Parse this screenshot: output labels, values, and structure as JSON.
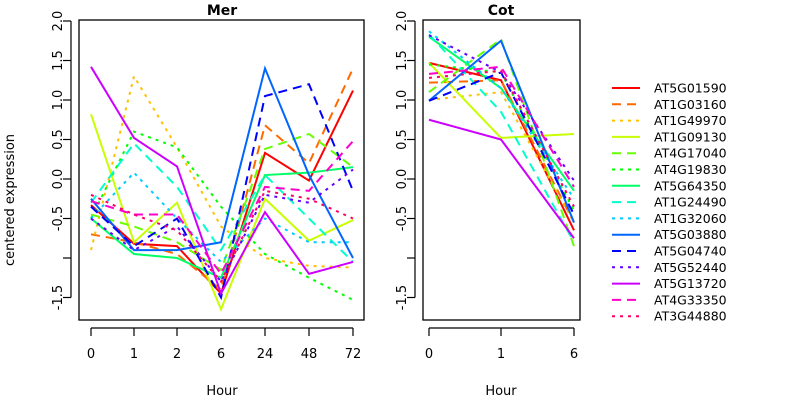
{
  "chart_data": [
    {
      "type": "line",
      "title": "Mer",
      "xlabel": "Hour",
      "ylabel": "centered expression",
      "categories": [
        "0",
        "1",
        "2",
        "6",
        "24",
        "48",
        "72"
      ],
      "ylim": [
        -1.75,
        2.0
      ],
      "yticks": [
        "-1.5",
        "-1.0",
        "-0.5",
        "0.0",
        "0.5",
        "1.0",
        "1.5",
        "2.0"
      ],
      "yticklabels_shown": [
        "-1.5",
        "",
        "-0.5",
        "0.0",
        "0.5",
        "1.0",
        "1.5",
        "2.0"
      ],
      "grid": false,
      "series": [
        {
          "name": "AT5G01590",
          "values": [
            -0.33,
            -0.82,
            -0.85,
            -1.45,
            0.33,
            -0.02,
            1.12
          ]
        },
        {
          "name": "AT1G03160",
          "values": [
            -0.7,
            -0.8,
            -0.95,
            -1.4,
            0.68,
            0.2,
            1.4
          ]
        },
        {
          "name": "AT1G49970",
          "values": [
            -0.9,
            1.3,
            0.4,
            -0.6,
            -1.0,
            -1.1,
            -1.12
          ]
        },
        {
          "name": "AT1G09130",
          "values": [
            0.82,
            -0.8,
            -0.3,
            -1.65,
            -0.25,
            -0.78,
            -0.52
          ]
        },
        {
          "name": "AT4G17040",
          "values": [
            -0.45,
            -0.6,
            -0.8,
            -1.15,
            0.38,
            0.57,
            0.15
          ]
        },
        {
          "name": "AT4G19830",
          "values": [
            -0.5,
            0.6,
            0.4,
            -0.35,
            -0.95,
            -1.25,
            -1.53
          ]
        },
        {
          "name": "AT5G64350",
          "values": [
            -0.5,
            -0.95,
            -1.0,
            -1.25,
            0.05,
            0.08,
            0.15
          ]
        },
        {
          "name": "AT1G24490",
          "values": [
            -0.3,
            0.45,
            -0.1,
            -0.9,
            0.05,
            -0.5,
            -1.05
          ]
        },
        {
          "name": "AT1G32060",
          "values": [
            -0.5,
            0.08,
            -0.5,
            -1.05,
            -0.5,
            -0.8,
            -0.8
          ]
        },
        {
          "name": "AT5G03880",
          "values": [
            -0.25,
            -0.9,
            -0.9,
            -0.8,
            1.4,
            0.05,
            -1.0
          ]
        },
        {
          "name": "AT5G04740",
          "values": [
            -0.35,
            -0.85,
            -0.5,
            -1.5,
            1.05,
            1.2,
            -0.15
          ]
        },
        {
          "name": "AT5G52440",
          "values": [
            -0.5,
            -0.9,
            -0.6,
            -1.3,
            -0.2,
            -0.3,
            0.12
          ]
        },
        {
          "name": "AT5G13720",
          "values": [
            1.42,
            0.52,
            0.16,
            -1.45,
            -0.42,
            -1.2,
            -1.05
          ]
        },
        {
          "name": "AT4G33350",
          "values": [
            -0.28,
            -0.45,
            -0.45,
            -1.2,
            -0.1,
            -0.15,
            0.48
          ]
        },
        {
          "name": "AT3G44880",
          "values": [
            -0.2,
            -0.45,
            -0.65,
            -1.3,
            -0.15,
            -0.25,
            -0.5
          ]
        }
      ]
    },
    {
      "type": "line",
      "title": "Cot",
      "xlabel": "Hour",
      "ylabel": "",
      "categories": [
        "0",
        "1",
        "6"
      ],
      "ylim": [
        -1.75,
        2.0
      ],
      "yticks": [
        "-1.5",
        "-1.0",
        "-0.5",
        "0.0",
        "0.5",
        "1.0",
        "1.5",
        "2.0"
      ],
      "yticklabels_shown": [
        "-1.5",
        "",
        "-0.5",
        "0.0",
        "0.5",
        "1.0",
        "1.5",
        "2.0"
      ],
      "grid": false,
      "series": [
        {
          "name": "AT5G01590",
          "values": [
            1.47,
            1.25,
            -0.65
          ]
        },
        {
          "name": "AT1G03160",
          "values": [
            1.22,
            1.25,
            -0.55
          ]
        },
        {
          "name": "AT1G49970",
          "values": [
            1.0,
            1.1,
            -0.55
          ]
        },
        {
          "name": "AT1G09130",
          "values": [
            1.47,
            0.52,
            0.57
          ]
        },
        {
          "name": "AT4G17040",
          "values": [
            1.1,
            1.77,
            -0.85
          ]
        },
        {
          "name": "AT4G19830",
          "values": [
            1.45,
            1.35,
            -0.4
          ]
        },
        {
          "name": "AT5G64350",
          "values": [
            1.8,
            1.15,
            -0.15
          ]
        },
        {
          "name": "AT1G24490",
          "values": [
            1.83,
            0.85,
            -0.8
          ]
        },
        {
          "name": "AT1G32060",
          "values": [
            1.87,
            1.15,
            -0.25
          ]
        },
        {
          "name": "AT5G03880",
          "values": [
            0.99,
            1.75,
            -0.55
          ]
        },
        {
          "name": "AT5G04740",
          "values": [
            0.99,
            1.35,
            -0.45
          ]
        },
        {
          "name": "AT5G52440",
          "values": [
            1.82,
            1.35,
            -0.02
          ]
        },
        {
          "name": "AT5G13720",
          "values": [
            0.75,
            0.5,
            -0.75
          ]
        },
        {
          "name": "AT4G33350",
          "values": [
            1.33,
            1.42,
            -0.1
          ]
        },
        {
          "name": "AT3G44880",
          "values": [
            1.28,
            1.37,
            -0.35
          ]
        }
      ]
    }
  ],
  "legend": {
    "placement": "right",
    "entries": [
      {
        "name": "AT5G01590",
        "color": "#ff0000",
        "style": "solid"
      },
      {
        "name": "AT1G03160",
        "color": "#ff6a00",
        "style": "dashed"
      },
      {
        "name": "AT1G49970",
        "color": "#ffc000",
        "style": "dotted"
      },
      {
        "name": "AT1G09130",
        "color": "#c8ff00",
        "style": "solid"
      },
      {
        "name": "AT4G17040",
        "color": "#66ff00",
        "style": "dashed"
      },
      {
        "name": "AT4G19830",
        "color": "#00ff00",
        "style": "dotted"
      },
      {
        "name": "AT5G64350",
        "color": "#00ff66",
        "style": "solid"
      },
      {
        "name": "AT1G24490",
        "color": "#00ffcc",
        "style": "dashed"
      },
      {
        "name": "AT1G32060",
        "color": "#00ccff",
        "style": "dotted"
      },
      {
        "name": "AT5G03880",
        "color": "#0066ff",
        "style": "solid"
      },
      {
        "name": "AT5G04740",
        "color": "#0000ff",
        "style": "dashed"
      },
      {
        "name": "AT5G52440",
        "color": "#6600ff",
        "style": "dotted"
      },
      {
        "name": "AT5G13720",
        "color": "#cc00ff",
        "style": "solid"
      },
      {
        "name": "AT4G33350",
        "color": "#ff00cc",
        "style": "dashed"
      },
      {
        "name": "AT3G44880",
        "color": "#ff0066",
        "style": "dotted"
      }
    ]
  }
}
